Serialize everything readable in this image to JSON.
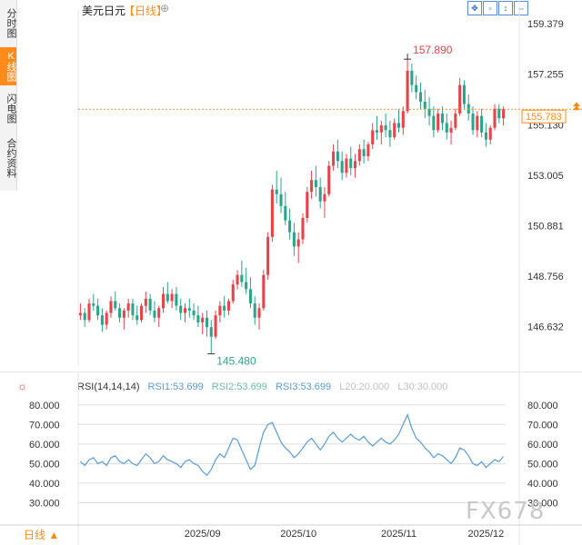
{
  "sidebar": {
    "tabs": [
      {
        "label": "分时图",
        "active": false
      },
      {
        "label": "K线图",
        "active": true
      },
      {
        "label": "闪电图",
        "active": false
      },
      {
        "label": "合约资料",
        "active": false
      }
    ]
  },
  "header": {
    "title": "美元日元",
    "period": "【日线】",
    "plus": "⊕",
    "tools": [
      "zoom-in-icon",
      "zoom-out-icon",
      "move-up-icon",
      "shrink-icon",
      "move-right-icon"
    ]
  },
  "colors": {
    "up": "#e8434b",
    "down": "#2aa58a",
    "accent": "#ff8c1a",
    "rsi": "#5a9bd5",
    "grid": "#e6e6e6"
  },
  "chart_data": [
    {
      "type": "candlestick",
      "ylim": [
        145.0,
        160.0
      ],
      "yticks": [
        159.379,
        157.255,
        155.13,
        153.005,
        150.881,
        148.756,
        146.632
      ],
      "ytick_labels": [
        "159.379",
        "157.255",
        "155.130",
        "153.005",
        "150.881",
        "148.756",
        "146.632"
      ],
      "xtick_labels": [
        "2025/09",
        "2025/10",
        "2025/11",
        "2025/12"
      ],
      "xtick_positions": [
        28,
        50,
        73,
        93
      ],
      "high_annotation": {
        "value": 157.89,
        "label": "157.890",
        "index": 75
      },
      "low_annotation": {
        "value": 145.48,
        "label": "145.480",
        "index": 30
      },
      "last_price": {
        "value": 155.783,
        "label": "155.783"
      },
      "candles": [
        [
          147.1,
          147.6,
          146.9,
          147.2
        ],
        [
          147.2,
          147.4,
          146.6,
          146.9
        ],
        [
          146.9,
          147.8,
          146.8,
          147.6
        ],
        [
          147.6,
          148.0,
          147.3,
          147.5
        ],
        [
          147.5,
          147.8,
          146.9,
          147.1
        ],
        [
          147.1,
          147.4,
          146.4,
          146.7
        ],
        [
          146.7,
          147.3,
          146.5,
          147.2
        ],
        [
          147.2,
          147.9,
          147.0,
          147.7
        ],
        [
          147.7,
          148.1,
          147.3,
          147.4
        ],
        [
          147.4,
          147.6,
          146.8,
          147.0
        ],
        [
          147.0,
          147.4,
          146.5,
          147.3
        ],
        [
          147.3,
          147.8,
          147.0,
          147.6
        ],
        [
          147.6,
          147.8,
          146.9,
          147.1
        ],
        [
          147.1,
          147.5,
          146.7,
          146.9
        ],
        [
          146.9,
          147.6,
          146.8,
          147.5
        ],
        [
          147.5,
          148.1,
          147.2,
          147.8
        ],
        [
          147.8,
          148.0,
          147.1,
          147.3
        ],
        [
          147.3,
          147.7,
          146.8,
          147.0
        ],
        [
          147.0,
          147.5,
          146.6,
          147.4
        ],
        [
          147.4,
          148.3,
          147.2,
          148.0
        ],
        [
          148.0,
          148.5,
          147.6,
          147.7
        ],
        [
          147.7,
          148.2,
          147.4,
          148.0
        ],
        [
          148.0,
          148.3,
          147.3,
          147.5
        ],
        [
          147.5,
          147.8,
          146.9,
          147.2
        ],
        [
          147.2,
          147.6,
          146.8,
          147.4
        ],
        [
          147.4,
          147.8,
          147.0,
          147.3
        ],
        [
          147.3,
          147.6,
          146.9,
          147.1
        ],
        [
          147.1,
          147.5,
          146.6,
          146.8
        ],
        [
          146.8,
          147.2,
          146.3,
          147.0
        ],
        [
          147.0,
          147.3,
          146.2,
          146.6
        ],
        [
          146.6,
          146.9,
          145.48,
          146.2
        ],
        [
          146.2,
          147.3,
          146.1,
          147.1
        ],
        [
          147.1,
          147.7,
          146.8,
          147.5
        ],
        [
          147.5,
          147.9,
          147.0,
          147.3
        ],
        [
          147.3,
          147.8,
          147.1,
          147.7
        ],
        [
          147.7,
          148.6,
          147.6,
          148.4
        ],
        [
          148.4,
          149.0,
          148.2,
          148.8
        ],
        [
          148.8,
          149.4,
          148.3,
          148.5
        ],
        [
          148.5,
          149.1,
          148.0,
          148.2
        ],
        [
          148.2,
          148.7,
          147.4,
          147.6
        ],
        [
          147.6,
          147.9,
          146.7,
          147.0
        ],
        [
          147.0,
          147.6,
          146.5,
          147.4
        ],
        [
          147.4,
          149.0,
          147.3,
          148.8
        ],
        [
          148.8,
          150.6,
          148.6,
          150.4
        ],
        [
          150.4,
          152.6,
          150.2,
          152.4
        ],
        [
          152.4,
          153.2,
          151.8,
          152.2
        ],
        [
          152.2,
          152.9,
          151.4,
          151.7
        ],
        [
          151.7,
          152.3,
          150.9,
          151.1
        ],
        [
          151.1,
          151.6,
          150.3,
          150.6
        ],
        [
          150.6,
          151.0,
          149.6,
          150.0
        ],
        [
          150.0,
          150.6,
          149.3,
          150.3
        ],
        [
          150.3,
          151.4,
          150.1,
          151.2
        ],
        [
          151.2,
          152.5,
          151.0,
          152.3
        ],
        [
          152.3,
          153.2,
          152.0,
          152.8
        ],
        [
          152.8,
          153.4,
          152.1,
          152.5
        ],
        [
          152.5,
          152.9,
          151.6,
          151.9
        ],
        [
          151.9,
          152.5,
          151.2,
          152.2
        ],
        [
          152.2,
          153.6,
          152.1,
          153.4
        ],
        [
          153.4,
          154.3,
          153.2,
          154.0
        ],
        [
          154.0,
          154.5,
          153.3,
          153.6
        ],
        [
          153.6,
          154.0,
          152.8,
          153.1
        ],
        [
          153.1,
          153.9,
          152.9,
          153.7
        ],
        [
          153.7,
          154.2,
          153.0,
          153.3
        ],
        [
          153.3,
          153.9,
          152.9,
          153.6
        ],
        [
          153.6,
          154.3,
          153.4,
          154.1
        ],
        [
          154.1,
          154.5,
          153.5,
          153.8
        ],
        [
          153.8,
          154.4,
          153.6,
          154.3
        ],
        [
          154.3,
          155.2,
          154.1,
          154.9
        ],
        [
          154.9,
          155.5,
          154.5,
          154.8
        ],
        [
          154.8,
          155.3,
          154.3,
          155.1
        ],
        [
          155.1,
          155.6,
          154.6,
          154.9
        ],
        [
          154.9,
          155.3,
          154.2,
          154.6
        ],
        [
          154.6,
          155.4,
          154.5,
          155.2
        ],
        [
          155.2,
          155.8,
          154.8,
          155.0
        ],
        [
          155.0,
          155.9,
          154.7,
          155.7
        ],
        [
          155.7,
          157.89,
          155.6,
          157.4
        ],
        [
          157.4,
          157.7,
          156.5,
          156.8
        ],
        [
          156.8,
          157.2,
          156.2,
          156.5
        ],
        [
          156.5,
          156.9,
          155.8,
          156.1
        ],
        [
          156.1,
          156.6,
          155.4,
          155.8
        ],
        [
          155.8,
          156.3,
          155.1,
          155.5
        ],
        [
          155.5,
          155.9,
          154.6,
          154.9
        ],
        [
          154.9,
          155.8,
          154.8,
          155.6
        ],
        [
          155.6,
          155.9,
          154.9,
          155.2
        ],
        [
          155.2,
          155.6,
          154.5,
          154.8
        ],
        [
          154.8,
          155.3,
          154.3,
          155.0
        ],
        [
          155.0,
          155.8,
          154.9,
          155.6
        ],
        [
          155.6,
          157.1,
          155.5,
          156.8
        ],
        [
          156.8,
          157.0,
          155.8,
          156.0
        ],
        [
          156.0,
          156.4,
          155.3,
          155.6
        ],
        [
          155.6,
          155.9,
          154.7,
          154.9
        ],
        [
          154.9,
          155.7,
          154.6,
          155.5
        ],
        [
          155.5,
          155.8,
          154.6,
          154.8
        ],
        [
          154.8,
          155.2,
          154.2,
          154.5
        ],
        [
          154.5,
          155.1,
          154.3,
          155.0
        ],
        [
          155.0,
          156.0,
          154.9,
          155.8
        ],
        [
          155.8,
          156.0,
          155.2,
          155.4
        ],
        [
          155.4,
          155.9,
          155.1,
          155.783
        ]
      ]
    },
    {
      "type": "line",
      "title": "RSI(14,14,14)",
      "legend": [
        {
          "label": "RSI1:53.699",
          "color": "#5a9bd5"
        },
        {
          "label": "RSI2:53.699",
          "color": "#6cc0a0"
        },
        {
          "label": "RSI3:53.699",
          "color": "#5a9bd5"
        },
        {
          "label": "L20:20.000",
          "color": "#c8c8c8"
        },
        {
          "label": "L30:30.000",
          "color": "#c8c8c8"
        }
      ],
      "ylim": [
        20,
        85
      ],
      "yticks": [
        80,
        70,
        60,
        50,
        40,
        30
      ],
      "ytick_labels": [
        "80.000",
        "70.000",
        "60.000",
        "50.000",
        "40.000",
        "30.000"
      ],
      "series": [
        {
          "values": [
            51,
            49,
            52,
            53,
            50,
            51,
            49,
            53,
            54,
            51,
            50,
            52,
            50,
            49,
            52,
            55,
            53,
            50,
            51,
            54,
            52,
            51,
            50,
            48,
            51,
            52,
            50,
            49,
            46,
            44,
            47,
            52,
            55,
            53,
            58,
            63,
            62,
            57,
            52,
            47,
            49,
            58,
            66,
            70,
            71,
            66,
            61,
            58,
            56,
            53,
            55,
            58,
            61,
            63,
            60,
            57,
            60,
            64,
            66,
            63,
            61,
            63,
            65,
            63,
            62,
            64,
            61,
            59,
            61,
            63,
            61,
            60,
            62,
            65,
            70,
            75,
            68,
            63,
            61,
            58,
            56,
            53,
            55,
            54,
            52,
            50,
            53,
            58,
            57,
            54,
            50,
            49,
            51,
            48,
            50,
            52,
            51,
            53.699
          ]
        }
      ]
    }
  ],
  "footer": {
    "period": "日线 ▲"
  },
  "watermark": "FX678"
}
